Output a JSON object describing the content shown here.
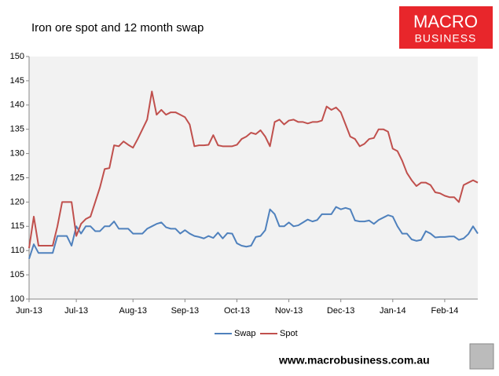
{
  "chart_data": {
    "type": "line",
    "title": "Iron ore spot and 12 month swap",
    "brand": {
      "line1": "MACRO",
      "line2": "BUSINESS",
      "url": "www.macrobusiness.com.au"
    },
    "categories": [
      "Jun-13",
      null,
      null,
      null,
      null,
      null,
      null,
      null,
      null,
      null,
      "Jul-13",
      null,
      null,
      null,
      null,
      null,
      null,
      null,
      null,
      null,
      null,
      null,
      "Aug-13",
      null,
      null,
      null,
      null,
      null,
      null,
      null,
      null,
      null,
      null,
      "Sep-13",
      null,
      null,
      null,
      null,
      null,
      null,
      null,
      null,
      null,
      null,
      "Oct-13",
      null,
      null,
      null,
      null,
      null,
      null,
      null,
      null,
      null,
      null,
      "Nov-13",
      null,
      null,
      null,
      null,
      null,
      null,
      null,
      null,
      null,
      null,
      "Dec-13",
      null,
      null,
      null,
      null,
      null,
      null,
      null,
      null,
      null,
      null,
      "Jan-14",
      null,
      null,
      null,
      null,
      null,
      null,
      null,
      null,
      null,
      null,
      "Feb-14",
      null,
      null,
      null,
      null,
      null,
      null,
      null
    ],
    "series": [
      {
        "name": "Swap",
        "color": "#4f81bd",
        "values": [
          108.3,
          111.3,
          109.5,
          109.5,
          109.5,
          109.5,
          113,
          113,
          113,
          111,
          115,
          113.5,
          115,
          115,
          114,
          114,
          115,
          115,
          116,
          114.5,
          114.5,
          114.5,
          113.5,
          113.5,
          113.5,
          114.5,
          115,
          115.5,
          115.8,
          114.8,
          114.5,
          114.5,
          113.5,
          114.2,
          113.5,
          113,
          112.8,
          112.5,
          113,
          112.6,
          113.7,
          112.5,
          113.6,
          113.5,
          111.5,
          111,
          110.8,
          111,
          112.8,
          113,
          114.2,
          118.5,
          117.5,
          115,
          115,
          115.8,
          115,
          115.2,
          115.8,
          116.4,
          116,
          116.3,
          117.5,
          117.5,
          117.5,
          119,
          118.5,
          118.8,
          118.5,
          116.2,
          116,
          116,
          116.2,
          115.5,
          116.3,
          116.8,
          117.3,
          117,
          115,
          113.5,
          113.5,
          112.3,
          112,
          112.2,
          114,
          113.5,
          112.7,
          112.8,
          112.8,
          112.9,
          112.9,
          112.2,
          112.5,
          113.4,
          115,
          113.5
        ]
      },
      {
        "name": "Spot",
        "color": "#c0504d",
        "values": [
          110.5,
          117,
          111,
          111,
          111,
          111,
          115,
          120,
          120,
          120,
          113,
          115.5,
          116.5,
          117,
          120,
          123,
          126.8,
          127,
          131.7,
          131.5,
          132.5,
          131.8,
          131.2,
          133,
          135,
          137,
          142.8,
          138,
          139,
          138,
          138.5,
          138.5,
          138,
          137.5,
          136,
          131.5,
          131.7,
          131.7,
          131.8,
          133.8,
          131.7,
          131.5,
          131.5,
          131.5,
          131.8,
          133,
          133.5,
          134.3,
          134,
          134.8,
          133.5,
          131.5,
          136.5,
          137,
          136,
          136.8,
          137,
          136.5,
          136.5,
          136.2,
          136.5,
          136.5,
          136.8,
          139.7,
          139,
          139.5,
          138.5,
          136,
          133.5,
          133,
          131.5,
          132,
          133,
          133.2,
          135,
          135,
          134.5,
          131,
          130.5,
          128.5,
          126,
          124.5,
          123.3,
          124,
          124,
          123.5,
          122,
          121.8,
          121.3,
          121,
          121,
          120,
          123.5,
          124,
          124.5,
          124
        ]
      }
    ],
    "ylim": [
      100,
      150
    ],
    "yticks": [
      100,
      105,
      110,
      115,
      120,
      125,
      130,
      135,
      140,
      145,
      150
    ],
    "grid": false,
    "legend": "bottom"
  }
}
